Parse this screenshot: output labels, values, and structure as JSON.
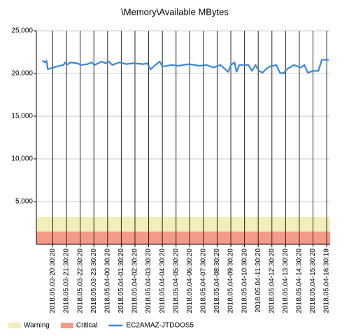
{
  "chart_data": {
    "type": "line",
    "title": "\\Memory\\Available MBytes",
    "ylim": [
      0,
      25000
    ],
    "yticks": [
      {
        "value": 5000,
        "label": "5,000"
      },
      {
        "value": 10000,
        "label": "10,000"
      },
      {
        "value": 15000,
        "label": "15,000"
      },
      {
        "value": 20000,
        "label": "20,000"
      },
      {
        "value": 25000,
        "label": "25,000"
      }
    ],
    "xlim": [
      -1.2,
      20.25
    ],
    "xticks": [
      {
        "value": 0,
        "label": "2018.05.03-20:30:20"
      },
      {
        "value": 1,
        "label": "2018.05.03-21:30:20"
      },
      {
        "value": 2,
        "label": "2018.05.03-22:30:20"
      },
      {
        "value": 3,
        "label": "2018.05.03-23:30:20"
      },
      {
        "value": 4,
        "label": "2018.05.04-00:30:20"
      },
      {
        "value": 5,
        "label": "2018.05.04-01:30:20"
      },
      {
        "value": 6,
        "label": "2018.05.04-02:30:20"
      },
      {
        "value": 7,
        "label": "2018.05.04-03:30:20"
      },
      {
        "value": 8,
        "label": "2018.05.04-04:30:20"
      },
      {
        "value": 9,
        "label": "2018.05.04-05:30:20"
      },
      {
        "value": 10,
        "label": "2018.05.04-06:30:20"
      },
      {
        "value": 11,
        "label": "2018.05.04-07:30:20"
      },
      {
        "value": 12,
        "label": "2018.05.04-08:30:20"
      },
      {
        "value": 13,
        "label": "2018.05.04-09:30:20"
      },
      {
        "value": 14,
        "label": "2018.05.04-10:30:20"
      },
      {
        "value": 15,
        "label": "2018.05.04-11:30:20"
      },
      {
        "value": 16,
        "label": "2018.05.04-12:30:20"
      },
      {
        "value": 17,
        "label": "2018.05.04-13:30:20"
      },
      {
        "value": 18,
        "label": "2018.05.04-14:30:20"
      },
      {
        "value": 19,
        "label": "2018.05.04-15:30:20"
      },
      {
        "value": 20,
        "label": "2018.05.04-16:30:19"
      }
    ],
    "grid": true,
    "bands": [
      {
        "name": "Warning",
        "color": "#f3edb8",
        "range": [
          1500,
          3200
        ]
      },
      {
        "name": "Critical",
        "color": "#f49a88",
        "range": [
          0,
          1500
        ]
      }
    ],
    "series": [
      {
        "name": "EC2AMAZ-JTDOOS5",
        "color": "#3a86d8",
        "x": [
          -0.77,
          -0.56,
          -0.46,
          -0.36,
          0,
          0.51,
          0.77,
          0.92,
          1.02,
          1.28,
          1.79,
          2.04,
          2.55,
          2.81,
          3.06,
          3.57,
          3.83,
          4.08,
          4.34,
          4.85,
          5.36,
          5.87,
          6.63,
          6.89,
          7.14,
          7.5,
          7.81,
          8.01,
          8.67,
          9.18,
          9.95,
          10.71,
          11.22,
          11.73,
          12.24,
          12.6,
          12.81,
          13.01,
          13.27,
          13.42,
          13.62,
          14.29,
          14.54,
          14.8,
          15.05,
          15.31,
          15.56,
          15.82,
          16.33,
          16.58,
          16.84,
          17.09,
          17.6,
          18.11,
          18.37,
          18.62,
          19.03,
          19.39,
          19.64,
          20.15
        ],
        "values": [
          21500,
          21300,
          21500,
          20500,
          20700,
          20900,
          21000,
          21300,
          21000,
          21300,
          21200,
          21000,
          21100,
          21300,
          21000,
          21400,
          21200,
          21400,
          21000,
          21300,
          21100,
          21200,
          21100,
          21200,
          20500,
          21000,
          21400,
          20800,
          21000,
          20900,
          21100,
          20900,
          21000,
          20700,
          21000,
          20500,
          20200,
          21000,
          21300,
          20200,
          21000,
          21000,
          20300,
          21000,
          20300,
          20100,
          20500,
          20800,
          21000,
          20100,
          20000,
          20500,
          21000,
          20700,
          21000,
          20100,
          20300,
          20300,
          21600,
          21600
        ]
      }
    ]
  }
}
